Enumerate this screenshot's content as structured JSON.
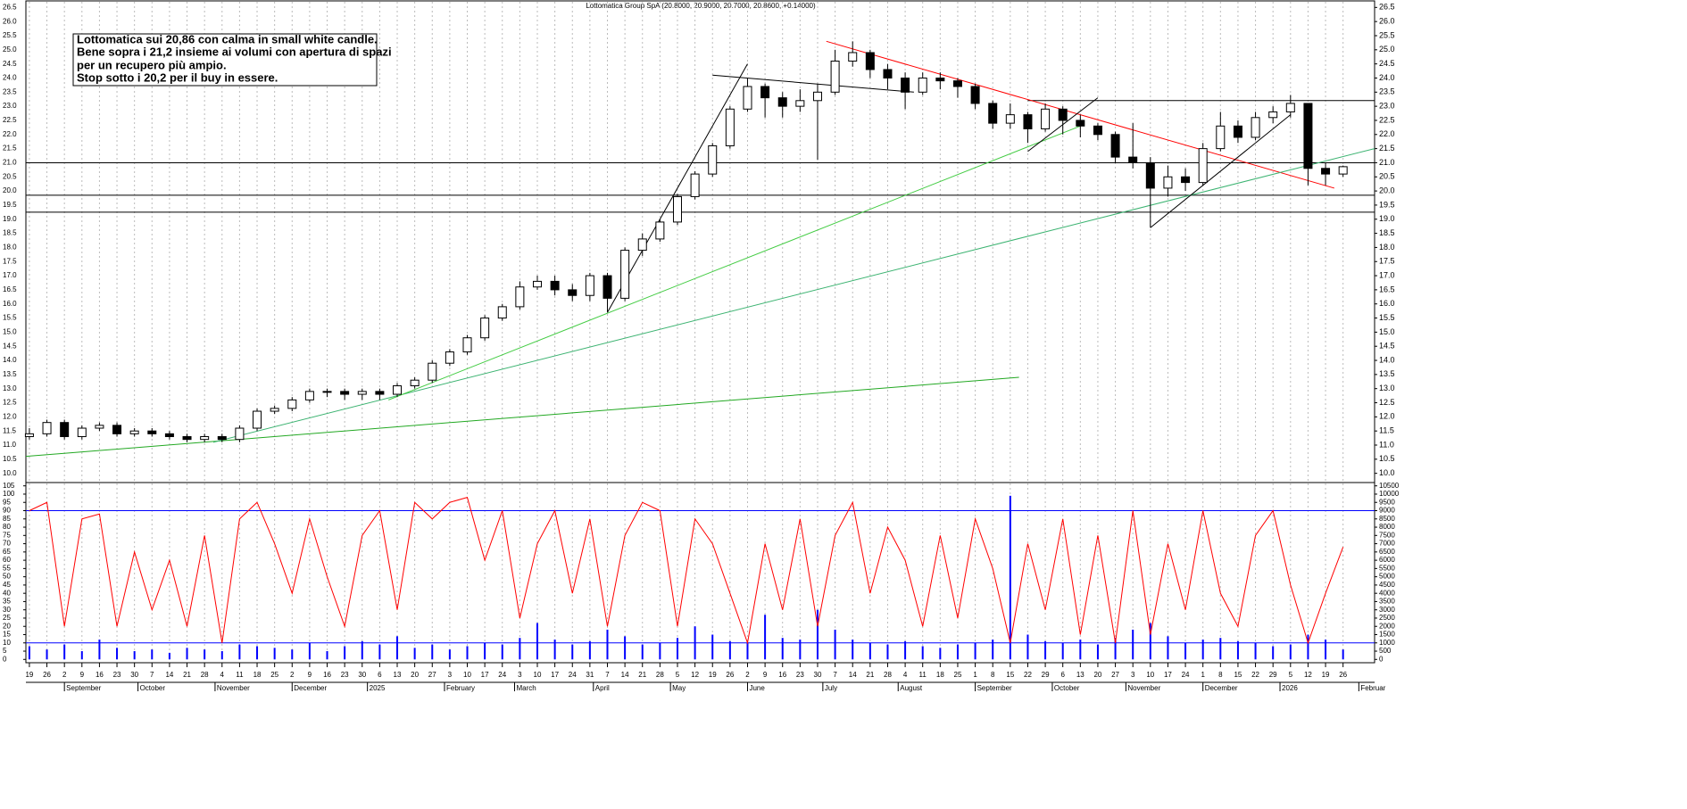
{
  "chart_data": {
    "type": "candlestick",
    "title": "Lottomatica Group SpA (20.8000, 20.9000, 20.7000, 20.8600, +0.14000)",
    "annotation": [
      "Lottomatica sui 20,86 con calma in small white candle.",
      "Bene sopra i 21,2 insieme ai volumi con apertura di spazi",
      "per un recupero più ampio.",
      "Stop sotto i 20,2 per il buy in essere."
    ],
    "categories": [
      "19",
      "26",
      "2",
      "9",
      "16",
      "23",
      "30",
      "7",
      "14",
      "21",
      "28",
      "4",
      "11",
      "18",
      "25",
      "2",
      "9",
      "16",
      "23",
      "30",
      "6",
      "13",
      "20",
      "27",
      "3",
      "10",
      "17",
      "24",
      "3",
      "10",
      "17",
      "24",
      "31",
      "7",
      "14",
      "21",
      "28",
      "5",
      "12",
      "19",
      "26",
      "2",
      "9",
      "16",
      "23",
      "30",
      "7",
      "14",
      "21",
      "28",
      "4",
      "11",
      "18",
      "25",
      "1",
      "8",
      "15",
      "22",
      "29",
      "6",
      "13",
      "20",
      "27",
      "3",
      "10",
      "17",
      "24",
      "1",
      "8",
      "15",
      "22",
      "29",
      "5",
      "12",
      "19",
      "26"
    ],
    "month_labels": [
      {
        "value": 2,
        "label": "September"
      },
      {
        "value": 6.2,
        "label": "October"
      },
      {
        "value": 10.6,
        "label": "November"
      },
      {
        "value": 15,
        "label": "December"
      },
      {
        "value": 19.3,
        "label": "2025"
      },
      {
        "value": 23.7,
        "label": "February"
      },
      {
        "value": 27.7,
        "label": "March"
      },
      {
        "value": 32.2,
        "label": "April"
      },
      {
        "value": 36.6,
        "label": "May"
      },
      {
        "value": 41,
        "label": "June"
      },
      {
        "value": 45.3,
        "label": "July"
      },
      {
        "value": 49.6,
        "label": "August"
      },
      {
        "value": 54,
        "label": "September"
      },
      {
        "value": 58.4,
        "label": "October"
      },
      {
        "value": 62.6,
        "label": "November"
      },
      {
        "value": 67,
        "label": "December"
      },
      {
        "value": 71.4,
        "label": "2026"
      },
      {
        "value": 75.9,
        "label": "Februar"
      }
    ],
    "xlim": [
      -0.2,
      76.8
    ],
    "open": [
      11.3,
      11.4,
      11.8,
      11.3,
      11.6,
      11.7,
      11.4,
      11.5,
      11.4,
      11.3,
      11.2,
      11.3,
      11.2,
      11.6,
      12.2,
      12.3,
      12.6,
      12.9,
      12.9,
      12.8,
      12.9,
      12.8,
      13.1,
      13.3,
      13.9,
      14.3,
      14.8,
      15.5,
      15.9,
      16.6,
      16.8,
      16.5,
      16.3,
      17.0,
      16.2,
      17.9,
      18.3,
      18.9,
      19.8,
      20.6,
      21.6,
      22.9,
      23.7,
      23.3,
      23.0,
      23.2,
      23.5,
      24.6,
      24.9,
      24.3,
      24.0,
      23.5,
      24.0,
      23.9,
      23.7,
      23.1,
      22.4,
      22.7,
      22.2,
      22.9,
      22.5,
      22.3,
      22.0,
      21.2,
      21.0,
      20.1,
      20.5,
      20.3,
      21.5,
      22.3,
      21.9,
      22.6,
      22.8,
      23.1,
      20.8,
      20.6
    ],
    "high": [
      11.6,
      11.9,
      11.9,
      11.7,
      11.8,
      11.8,
      11.6,
      11.6,
      11.5,
      11.4,
      11.4,
      11.4,
      11.7,
      12.3,
      12.4,
      12.7,
      13.0,
      13.0,
      13.0,
      13.0,
      13.0,
      13.2,
      13.4,
      14.0,
      14.4,
      14.9,
      15.6,
      16.0,
      16.8,
      17.0,
      17.0,
      16.7,
      17.1,
      17.1,
      18.0,
      18.5,
      19.0,
      19.9,
      20.7,
      21.7,
      23.0,
      24.0,
      23.8,
      23.5,
      23.6,
      23.8,
      25.0,
      25.3,
      25.0,
      24.5,
      24.2,
      24.2,
      24.2,
      24.0,
      23.8,
      23.2,
      23.1,
      22.8,
      23.1,
      23.0,
      22.7,
      22.4,
      22.1,
      22.4,
      21.2,
      20.9,
      20.8,
      21.7,
      22.8,
      22.5,
      22.8,
      23.0,
      23.4,
      23.1,
      21.0,
      20.9
    ],
    "low": [
      11.2,
      11.3,
      11.2,
      11.2,
      11.5,
      11.3,
      11.3,
      11.3,
      11.2,
      11.1,
      11.1,
      11.1,
      11.1,
      11.5,
      12.1,
      12.2,
      12.5,
      12.7,
      12.6,
      12.6,
      12.6,
      12.7,
      13.0,
      13.2,
      13.8,
      14.2,
      14.7,
      15.4,
      15.8,
      16.5,
      16.3,
      16.1,
      16.1,
      15.7,
      16.1,
      17.7,
      18.2,
      18.8,
      19.7,
      20.5,
      21.5,
      22.8,
      22.6,
      22.6,
      22.8,
      21.1,
      23.4,
      24.4,
      24.0,
      23.6,
      22.9,
      23.4,
      23.6,
      23.3,
      22.9,
      22.2,
      22.2,
      21.7,
      22.1,
      22.0,
      21.9,
      21.8,
      21.0,
      20.8,
      18.7,
      19.8,
      20.0,
      20.2,
      21.4,
      21.7,
      21.8,
      22.4,
      22.6,
      20.2,
      20.2,
      20.5
    ],
    "close": [
      11.4,
      11.8,
      11.3,
      11.6,
      11.7,
      11.4,
      11.5,
      11.4,
      11.3,
      11.2,
      11.3,
      11.2,
      11.6,
      12.2,
      12.3,
      12.6,
      12.9,
      12.9,
      12.8,
      12.9,
      12.8,
      13.1,
      13.3,
      13.9,
      14.3,
      14.8,
      15.5,
      15.9,
      16.6,
      16.8,
      16.5,
      16.3,
      17.0,
      16.2,
      17.9,
      18.3,
      18.9,
      19.8,
      20.6,
      21.6,
      22.9,
      23.7,
      23.3,
      23.0,
      23.2,
      23.5,
      24.6,
      24.9,
      24.3,
      24.0,
      23.5,
      24.0,
      23.9,
      23.7,
      23.1,
      22.4,
      22.7,
      22.2,
      22.9,
      22.5,
      22.3,
      22.0,
      21.2,
      21.0,
      20.1,
      20.5,
      20.3,
      21.5,
      22.3,
      21.9,
      22.6,
      22.8,
      23.1,
      20.8,
      20.6,
      20.86
    ],
    "ylim": [
      9.8,
      26.7
    ],
    "yticks": [
      {
        "value": 10,
        "label": "10.0"
      },
      {
        "value": 10.5,
        "label": "10.5"
      },
      {
        "value": 11,
        "label": "11.0"
      },
      {
        "value": 11.5,
        "label": "11.5"
      },
      {
        "value": 12,
        "label": "12.0"
      },
      {
        "value": 12.5,
        "label": "12.5"
      },
      {
        "value": 13,
        "label": "13.0"
      },
      {
        "value": 13.5,
        "label": "13.5"
      },
      {
        "value": 14,
        "label": "14.0"
      },
      {
        "value": 14.5,
        "label": "14.5"
      },
      {
        "value": 15,
        "label": "15.0"
      },
      {
        "value": 15.5,
        "label": "15.5"
      },
      {
        "value": 16,
        "label": "16.0"
      },
      {
        "value": 16.5,
        "label": "16.5"
      },
      {
        "value": 17,
        "label": "17.0"
      },
      {
        "value": 17.5,
        "label": "17.5"
      },
      {
        "value": 18,
        "label": "18.0"
      },
      {
        "value": 18.5,
        "label": "18.5"
      },
      {
        "value": 19,
        "label": "19.0"
      },
      {
        "value": 19.5,
        "label": "19.5"
      },
      {
        "value": 20,
        "label": "20.0"
      },
      {
        "value": 20.5,
        "label": "20.5"
      },
      {
        "value": 21,
        "label": "21.0"
      },
      {
        "value": 21.5,
        "label": "21.5"
      },
      {
        "value": 22,
        "label": "22.0"
      },
      {
        "value": 22.5,
        "label": "22.5"
      },
      {
        "value": 23,
        "label": "23.0"
      },
      {
        "value": 23.5,
        "label": "23.5"
      },
      {
        "value": 24,
        "label": "24.0"
      },
      {
        "value": 24.5,
        "label": "24.5"
      },
      {
        "value": 25,
        "label": "25.0"
      },
      {
        "value": 25.5,
        "label": "25.5"
      },
      {
        "value": 26,
        "label": "26.0"
      },
      {
        "value": 26.5,
        "label": "26.5"
      }
    ],
    "levels": [
      {
        "y": 23.2,
        "x": [
          57,
          76.8
        ],
        "color": "#000000"
      },
      {
        "y": 21.0,
        "x": [
          -0.2,
          76.8
        ],
        "color": "#000000"
      },
      {
        "y": 19.85,
        "x": [
          -0.2,
          76.8
        ],
        "color": "#000000"
      },
      {
        "y": 19.25,
        "x": [
          -0.2,
          76.8
        ],
        "color": "#000000"
      }
    ],
    "trendlines": [
      {
        "x": [
          45.5,
          74.5
        ],
        "y": [
          25.3,
          20.1
        ],
        "color": "#ff0000"
      },
      {
        "x": [
          -0.2,
          56.5
        ],
        "y": [
          10.6,
          13.4
        ],
        "color": "#22a822"
      },
      {
        "x": [
          10.5,
          76.8
        ],
        "y": [
          11.1,
          21.5
        ],
        "color": "#3cb371"
      },
      {
        "x": [
          20.5,
          60.0
        ],
        "y": [
          12.6,
          22.3
        ],
        "color": "#44cc44"
      },
      {
        "x": [
          33.0,
          41.0
        ],
        "y": [
          15.7,
          24.5
        ],
        "color": "#000000"
      },
      {
        "x": [
          39.0,
          50.5
        ],
        "y": [
          24.1,
          23.5
        ],
        "color": "#000000"
      },
      {
        "x": [
          57.0,
          61.0
        ],
        "y": [
          21.4,
          23.3
        ],
        "color": "#000000"
      },
      {
        "x": [
          64.0,
          72.0
        ],
        "y": [
          18.7,
          22.7
        ],
        "color": "#000000"
      }
    ],
    "oscillator": {
      "color": "#ff0000",
      "values": [
        90,
        95,
        20,
        85,
        88,
        20,
        65,
        30,
        60,
        20,
        75,
        10,
        85,
        95,
        70,
        40,
        85,
        50,
        20,
        75,
        90,
        30,
        95,
        85,
        95,
        98,
        60,
        90,
        25,
        70,
        90,
        40,
        85,
        20,
        75,
        95,
        90,
        20,
        85,
        70,
        40,
        10,
        70,
        30,
        85,
        20,
        75,
        95,
        40,
        80,
        60,
        20,
        75,
        25,
        85,
        55,
        10,
        70,
        30,
        85,
        15,
        75,
        10,
        90,
        15,
        70,
        30,
        90,
        40,
        20,
        75,
        90,
        45,
        10,
        40,
        68
      ],
      "ylim": [
        -2,
        107
      ],
      "yticks": [
        0,
        5,
        10,
        15,
        20,
        25,
        30,
        35,
        40,
        45,
        50,
        55,
        60,
        65,
        70,
        75,
        80,
        85,
        90,
        95,
        100,
        105
      ],
      "levels": [
        90,
        10
      ],
      "level_color": "#0000ff"
    },
    "volume": {
      "color": "#0000ff",
      "values": [
        800,
        600,
        900,
        500,
        1200,
        700,
        500,
        600,
        400,
        700,
        600,
        500,
        900,
        800,
        700,
        600,
        1000,
        500,
        800,
        1100,
        900,
        1400,
        700,
        900,
        600,
        800,
        1000,
        900,
        1300,
        2200,
        1200,
        900,
        1100,
        1800,
        1400,
        900,
        1000,
        1300,
        2000,
        1500,
        1100,
        1000,
        2700,
        1300,
        1200,
        3000,
        1800,
        1200,
        1000,
        900,
        1100,
        800,
        700,
        900,
        1000,
        1200,
        9900,
        1500,
        1100,
        1000,
        1200,
        900,
        1300,
        1800,
        2200,
        1400,
        1000,
        1200,
        1300,
        1100,
        1000,
        800,
        900,
        1500,
        1200,
        600
      ],
      "y2lim": [
        -200,
        10700
      ],
      "y2ticks": [
        0,
        500,
        1000,
        1500,
        2000,
        2500,
        3000,
        3500,
        4000,
        4500,
        5000,
        5500,
        6000,
        6500,
        7000,
        7500,
        8000,
        8500,
        9000,
        9500,
        10000,
        10500
      ]
    },
    "grid": true
  }
}
